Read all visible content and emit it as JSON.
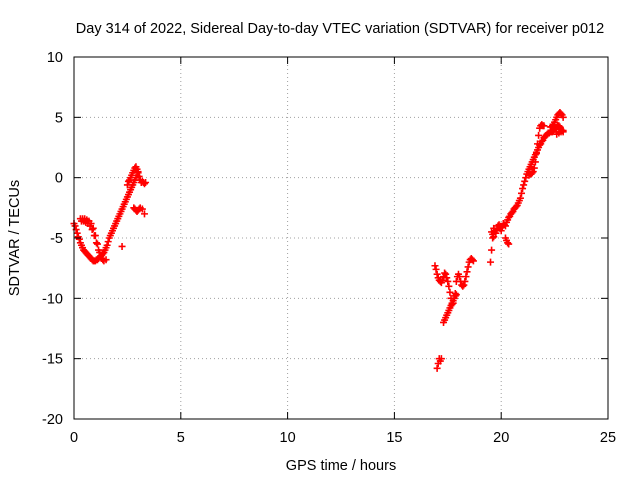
{
  "chart_data": {
    "type": "scatter",
    "title": "Day 314 of 2022, Sidereal Day-to-day VTEC variation (SDTVAR) for receiver p012",
    "xlabel": "GPS time / hours",
    "ylabel": "SDTVAR / TECUs",
    "xlim": [
      0,
      25
    ],
    "ylim": [
      -20,
      10
    ],
    "xticks": [
      "0",
      "5",
      "10",
      "15",
      "20",
      "25"
    ],
    "yticks": [
      "-20",
      "-15",
      "-10",
      "-5",
      "0",
      "5",
      "10"
    ],
    "grid": true,
    "marker": "+",
    "color": "#ff0000",
    "series": [
      {
        "x": [
          0.0,
          0.05,
          0.1,
          0.15,
          0.2,
          0.25,
          0.3,
          0.35,
          0.4,
          0.45,
          0.5,
          0.55,
          0.6,
          0.65,
          0.7,
          0.75,
          0.8,
          0.85,
          0.9,
          0.95,
          1.0,
          1.05,
          1.1,
          1.15,
          1.2,
          1.25,
          1.3,
          1.35,
          1.4,
          1.45,
          1.5,
          1.55,
          1.6,
          1.65,
          1.7,
          1.75,
          1.8,
          1.85,
          1.9,
          1.95,
          2.0,
          2.05,
          2.1,
          2.15,
          2.2,
          2.25,
          2.3,
          2.35,
          2.4,
          2.45,
          2.5,
          2.55,
          2.6,
          2.65,
          2.7,
          2.75,
          2.8,
          2.85,
          2.9,
          2.95,
          3.0,
          0.3,
          0.4,
          0.5,
          0.6,
          0.7,
          0.8,
          0.9,
          1.0,
          1.1,
          1.2,
          1.3,
          1.4,
          1.5,
          0.35,
          0.45,
          0.55,
          0.65,
          0.75,
          0.85,
          0.95,
          1.05,
          1.15,
          1.25,
          1.35,
          2.25,
          2.5,
          2.55,
          2.6,
          2.65,
          2.7,
          2.75,
          2.8,
          2.85,
          2.9,
          2.95,
          3.0,
          3.05,
          3.1,
          3.15,
          3.2,
          3.25,
          3.3,
          3.35,
          2.8,
          2.85,
          2.9,
          2.95,
          3.0,
          3.05,
          3.1,
          3.2,
          3.3
        ],
        "y": [
          -3.8,
          -4.0,
          -4.3,
          -4.6,
          -4.9,
          -5.1,
          -5.4,
          -5.6,
          -5.8,
          -6.0,
          -6.1,
          -6.2,
          -6.3,
          -6.4,
          -6.5,
          -6.6,
          -6.7,
          -6.8,
          -6.9,
          -6.9,
          -6.9,
          -6.8,
          -6.8,
          -6.7,
          -6.6,
          -6.5,
          -6.4,
          -6.3,
          -6.2,
          -6.0,
          -5.8,
          -5.6,
          -5.3,
          -5.0,
          -4.8,
          -4.6,
          -4.4,
          -4.2,
          -4.0,
          -3.8,
          -3.6,
          -3.4,
          -3.2,
          -3.0,
          -2.8,
          -2.6,
          -2.4,
          -2.2,
          -2.0,
          -1.8,
          -1.6,
          -1.4,
          -1.2,
          -1.0,
          -0.8,
          -0.6,
          -0.4,
          -0.2,
          0.0,
          0.2,
          0.4,
          -3.4,
          -3.4,
          -3.4,
          -3.5,
          -3.6,
          -3.8,
          -4.2,
          -4.8,
          -5.5,
          -6.2,
          -6.7,
          -6.9,
          -6.8,
          -3.6,
          -3.6,
          -3.7,
          -3.8,
          -4.0,
          -4.3,
          -4.8,
          -5.4,
          -6.0,
          -6.5,
          -6.8,
          -5.7,
          -0.6,
          -0.3,
          -0.2,
          0.0,
          0.2,
          0.4,
          0.6,
          0.8,
          0.9,
          0.7,
          0.5,
          0.1,
          -0.2,
          -0.4,
          -0.3,
          -0.4,
          -0.5,
          -0.4,
          -2.5,
          -2.6,
          -2.7,
          -2.8,
          -2.7,
          -2.6,
          -2.5,
          -2.6,
          -3.0
        ]
      },
      {
        "x": [
          16.9,
          16.95,
          17.0,
          17.05,
          17.1,
          17.15,
          17.2,
          17.25,
          17.3,
          17.35,
          17.4,
          17.45,
          17.5,
          17.55,
          17.6,
          17.65,
          17.7,
          17.75,
          17.8,
          17.85,
          17.9,
          17.95,
          18.0,
          18.05,
          18.1,
          18.15,
          18.2,
          18.25,
          18.3,
          18.35,
          18.4,
          18.45,
          18.5,
          18.55,
          18.6,
          18.65,
          18.7,
          17.0,
          17.05,
          17.1,
          17.15,
          17.2,
          17.3,
          17.35,
          17.4,
          17.45,
          17.5,
          17.55,
          17.6,
          17.65,
          17.7,
          17.75,
          17.8,
          17.85,
          17.9
        ],
        "y": [
          -7.3,
          -7.6,
          -8.0,
          -8.3,
          -8.5,
          -8.6,
          -8.7,
          -8.5,
          -8.2,
          -7.9,
          -8.0,
          -8.3,
          -8.6,
          -9.0,
          -9.5,
          -10.0,
          -10.5,
          -10.4,
          -10.0,
          -9.6,
          -8.6,
          -8.2,
          -8.0,
          -8.2,
          -8.6,
          -8.9,
          -9.0,
          -8.9,
          -8.6,
          -8.2,
          -7.8,
          -7.4,
          -7.0,
          -6.8,
          -6.7,
          -6.8,
          -6.9,
          -15.8,
          -15.4,
          -15.0,
          -15.2,
          -15.0,
          -12.0,
          -11.8,
          -11.6,
          -11.4,
          -11.2,
          -11.0,
          -10.8,
          -10.6,
          -10.4,
          -10.2,
          -10.0,
          -9.8,
          -9.7
        ]
      },
      {
        "x": [
          19.5,
          19.55,
          19.6,
          19.65,
          19.7,
          19.75,
          19.8,
          19.85,
          19.9,
          19.95,
          20.0,
          20.05,
          20.1,
          20.15,
          20.2,
          20.25,
          20.3,
          20.35,
          20.4,
          20.45,
          20.5,
          20.55,
          20.6,
          20.65,
          20.7,
          20.75,
          20.8,
          20.85,
          20.9,
          20.95,
          21.0,
          21.05,
          21.1,
          21.15,
          21.2,
          21.25,
          21.3,
          21.35,
          21.4,
          21.45,
          21.5,
          21.55,
          21.6,
          21.65,
          21.7,
          21.75,
          21.8,
          21.85,
          21.9,
          21.95,
          22.0,
          22.05,
          22.1,
          22.15,
          22.2,
          22.25,
          22.3,
          22.35,
          22.4,
          22.45,
          22.5,
          22.55,
          22.6,
          22.65,
          22.7,
          22.75,
          22.8,
          22.85,
          22.9,
          19.55,
          19.6,
          19.65,
          20.2,
          20.25,
          20.3,
          20.35,
          21.3,
          21.35,
          21.4,
          21.45,
          21.5,
          21.55,
          21.6,
          21.65,
          21.7,
          21.75,
          21.8,
          21.85,
          21.9,
          21.95,
          22.0
        ],
        "y": [
          -7.0,
          -6.0,
          -5.0,
          -4.2,
          -4.4,
          -4.6,
          -4.3,
          -4.0,
          -3.9,
          -4.2,
          -4.4,
          -4.1,
          -3.8,
          -3.9,
          -4.0,
          -3.7,
          -3.5,
          -3.3,
          -3.2,
          -3.0,
          -2.9,
          -2.8,
          -2.6,
          -2.5,
          -2.4,
          -2.3,
          -2.1,
          -1.9,
          -1.7,
          -1.3,
          -0.9,
          -0.6,
          -0.3,
          0.0,
          0.3,
          0.5,
          0.7,
          0.9,
          1.1,
          1.3,
          1.5,
          1.7,
          1.9,
          2.1,
          2.3,
          2.5,
          2.7,
          2.8,
          3.0,
          3.1,
          3.3,
          3.4,
          3.5,
          3.6,
          3.7,
          3.7,
          3.8,
          3.8,
          3.8,
          3.9,
          4.0,
          4.1,
          4.2,
          4.3,
          4.3,
          4.2,
          4.0,
          3.9,
          3.8,
          -4.5,
          -4.7,
          -4.9,
          -5.0,
          -5.2,
          -5.4,
          -5.5,
          0.2,
          0.3,
          0.3,
          0.4,
          0.5,
          0.8,
          1.3,
          2.0,
          2.8,
          3.5,
          4.1,
          4.3,
          4.4,
          4.3,
          4.3
        ]
      },
      {
        "x": [
          22.3,
          22.35,
          22.4,
          22.45,
          22.5,
          22.55,
          22.6,
          22.65,
          22.7,
          22.75,
          22.8,
          22.85,
          22.9,
          22.6,
          22.7,
          22.8,
          22.9
        ],
        "y": [
          4.2,
          4.2,
          4.3,
          4.4,
          4.6,
          4.8,
          5.0,
          5.2,
          5.3,
          5.4,
          5.3,
          5.2,
          5.0,
          3.6,
          3.7,
          3.8,
          3.9
        ]
      }
    ]
  }
}
